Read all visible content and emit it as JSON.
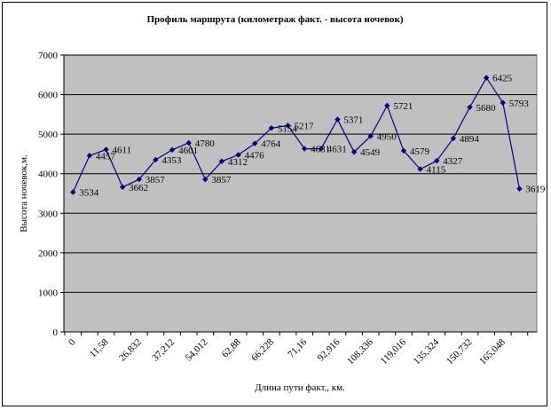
{
  "chart_data": {
    "type": "line",
    "title": "Профиль маршрута (километраж факт. - высота ночевок)",
    "xlabel": "Длина пути факт., км.",
    "ylabel": "Высота ночевок,м.",
    "ylim": [
      0,
      7000
    ],
    "yticks": [
      0,
      1000,
      2000,
      3000,
      4000,
      5000,
      6000,
      7000
    ],
    "grid": true,
    "plot_background": "#c0c0c0",
    "series_color": "#000080",
    "x_tick_labels": [
      "0",
      "11,58",
      "26,832",
      "37,212",
      "54,012",
      "62,88",
      "66,228",
      "71,16",
      "92,916",
      "108,336",
      "119,016",
      "135,324",
      "150,732",
      "165,048"
    ],
    "series": [
      {
        "values": [
          3534,
          4457,
          4611,
          3662,
          3857,
          4353,
          4601,
          4780,
          3857,
          4312,
          4476,
          4764,
          5154,
          5217,
          4631,
          4631,
          5371,
          4549,
          4950,
          5721,
          4579,
          4115,
          4327,
          4894,
          5680,
          6425,
          5793,
          3619
        ],
        "labels": [
          "3534",
          "4457",
          "4611",
          "3662",
          "3857",
          "4353",
          "4601",
          "4780",
          "3857",
          "4312",
          "4476",
          "4764",
          "5154",
          "5217",
          "4631",
          "4631",
          "5371",
          "4549",
          "4950",
          "5721",
          "4579",
          "4115",
          "4327",
          "4894",
          "5680",
          "6425",
          "5793",
          "3619"
        ]
      }
    ]
  }
}
